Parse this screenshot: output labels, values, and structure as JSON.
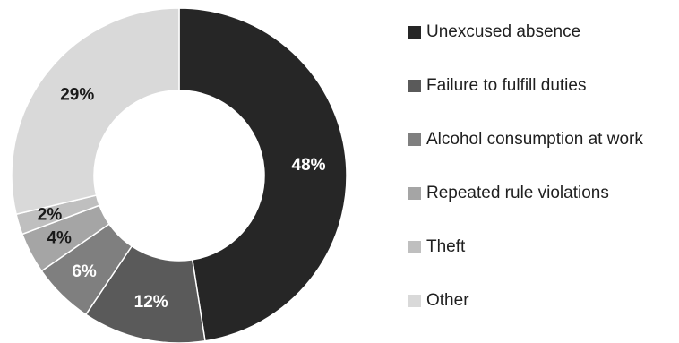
{
  "chart_data": {
    "type": "pie",
    "variant": "donut",
    "start_angle_deg": 0,
    "direction": "clockwise",
    "legend_position": "right",
    "slices": [
      {
        "name": "Unexcused absence",
        "value": 48,
        "label": "48%",
        "color": "#262626",
        "label_color": "#ffffff"
      },
      {
        "name": "Failure to fulfill duties",
        "value": 12,
        "label": "12%",
        "color": "#5a5a5a",
        "label_color": "#ffffff"
      },
      {
        "name": "Alcohol consumption at work",
        "value": 6,
        "label": "6%",
        "color": "#7f7f7f",
        "label_color": "#ffffff"
      },
      {
        "name": "Repeated rule violations",
        "value": 4,
        "label": "4%",
        "color": "#a5a5a5",
        "label_color": "#1a1a1a"
      },
      {
        "name": "Theft",
        "value": 2,
        "label": "2%",
        "color": "#bfbfbf",
        "label_color": "#1a1a1a"
      },
      {
        "name": "Other",
        "value": 29,
        "label": "29%",
        "color": "#d9d9d9",
        "label_color": "#1a1a1a"
      }
    ]
  }
}
